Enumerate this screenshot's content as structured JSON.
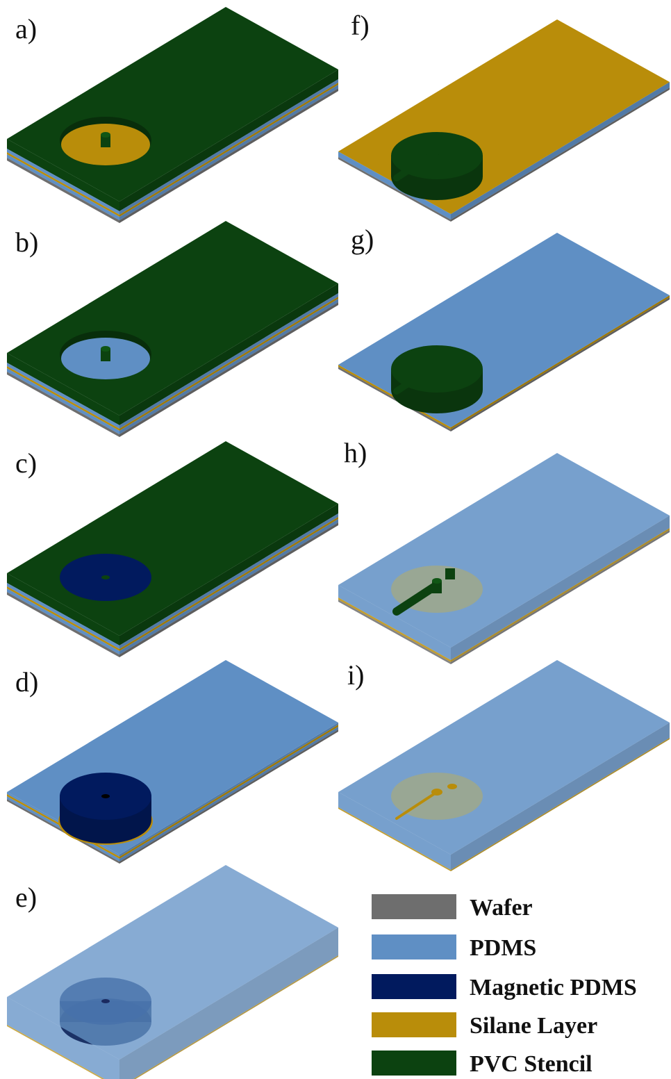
{
  "panels": [
    {
      "label": "a)"
    },
    {
      "label": "b)"
    },
    {
      "label": "c)"
    },
    {
      "label": "d)"
    },
    {
      "label": "e)"
    },
    {
      "label": "f)"
    },
    {
      "label": "g)"
    },
    {
      "label": "h)"
    },
    {
      "label": "i)"
    }
  ],
  "legend": [
    {
      "label": "Wafer",
      "color": "#6e6e6e"
    },
    {
      "label": "PDMS",
      "color": "#5f8fc4"
    },
    {
      "label": "Magnetic PDMS",
      "color": "#011a5e"
    },
    {
      "label": "Silane Layer",
      "color": "#b98d0a"
    },
    {
      "label": "PVC Stencil",
      "color": "#0c4210"
    }
  ]
}
